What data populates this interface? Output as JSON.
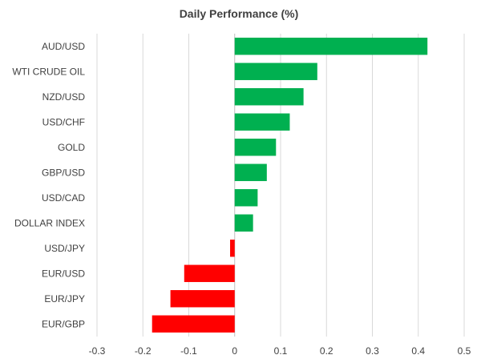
{
  "chart_data": {
    "type": "bar",
    "orientation": "horizontal",
    "title": "Daily Performance (%)",
    "categories": [
      "AUD/USD",
      "WTI CRUDE OIL",
      "NZD/USD",
      "USD/CHF",
      "GOLD",
      "GBP/USD",
      "USD/CAD",
      "DOLLAR INDEX",
      "USD/JPY",
      "EUR/USD",
      "EUR/JPY",
      "EUR/GBP"
    ],
    "values": [
      0.42,
      0.18,
      0.15,
      0.12,
      0.09,
      0.07,
      0.05,
      0.04,
      -0.01,
      -0.11,
      -0.14,
      -0.18
    ],
    "xlim": [
      -0.3,
      0.5
    ],
    "xticks": [
      "-0.3",
      "-0.2",
      "-0.1",
      "0",
      "0.1",
      "0.2",
      "0.3",
      "0.4",
      "0.5"
    ],
    "xtick_values": [
      -0.3,
      -0.2,
      -0.1,
      0,
      0.1,
      0.2,
      0.3,
      0.4,
      0.5
    ],
    "grid": "vertical",
    "legend": "none",
    "colors": {
      "positive": "#00b050",
      "negative": "#ff0000"
    }
  }
}
